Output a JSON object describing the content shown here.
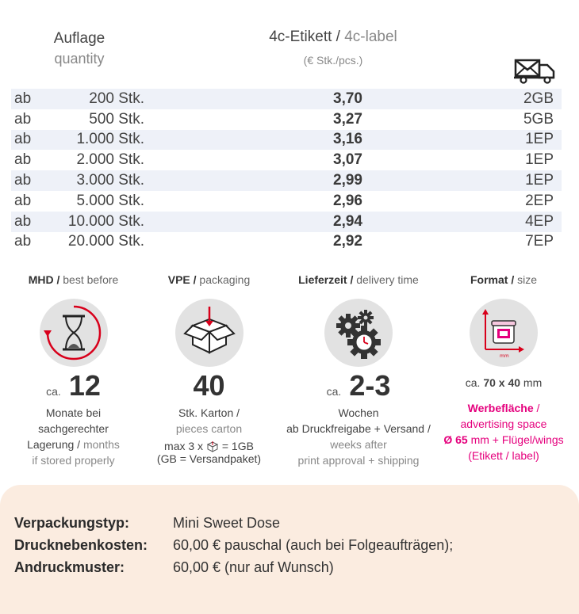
{
  "header": {
    "quantity_de": "Auflage",
    "quantity_en": "quantity",
    "label_de": "4c-Etikett /",
    "label_en": "4c-label",
    "unit": "(€ Stk./pcs.)",
    "shipping_icon": "truck-mail-icon"
  },
  "rows": [
    {
      "prefix": "ab",
      "qty": "200 Stk.",
      "price": "3,70",
      "ship": "2GB"
    },
    {
      "prefix": "ab",
      "qty": "500 Stk.",
      "price": "3,27",
      "ship": "5GB"
    },
    {
      "prefix": "ab",
      "qty": "1.000 Stk.",
      "price": "3,16",
      "ship": "1EP"
    },
    {
      "prefix": "ab",
      "qty": "2.000 Stk.",
      "price": "3,07",
      "ship": "1EP"
    },
    {
      "prefix": "ab",
      "qty": "3.000 Stk.",
      "price": "2,99",
      "ship": "1EP"
    },
    {
      "prefix": "ab",
      "qty": "5.000 Stk.",
      "price": "2,96",
      "ship": "2EP"
    },
    {
      "prefix": "ab",
      "qty": "10.000 Stk.",
      "price": "2,94",
      "ship": "4EP"
    },
    {
      "prefix": "ab",
      "qty": "20.000 Stk.",
      "price": "2,92",
      "ship": "7EP"
    }
  ],
  "info": {
    "mhd": {
      "title_de": "MHD /",
      "title_en": "best before",
      "ca": "ca.",
      "value": "12",
      "line1": "Monate bei",
      "line2": "sachgerechter",
      "line3a": "Lagerung /",
      "line3b": "months",
      "line4": "if stored properly",
      "icon": "hourglass-icon"
    },
    "vpe": {
      "title_de": "VPE /",
      "title_en": "packaging",
      "value": "40",
      "line1": "Stk. Karton /",
      "line2": "pieces carton",
      "line3a": "max 3 x",
      "line3b": "= 1GB",
      "line4": "(GB = Versandpaket)",
      "icon": "box-icon"
    },
    "delivery": {
      "title_de": "Lieferzeit /",
      "title_en": "delivery time",
      "ca": "ca.",
      "value": "2-3",
      "line1": "Wochen",
      "line2": "ab Druckfreigabe + Versand /",
      "line3": "weeks after",
      "line4": "print approval + shipping",
      "icon": "gears-clock-icon"
    },
    "format": {
      "title_de": "Format /",
      "title_en": "size",
      "size_prefix": "ca.",
      "size_value": "70 x 40",
      "size_unit": "mm",
      "line1a": "Werbefläche",
      "line1b": "/",
      "line2": "advertising space",
      "line3a": "Ø 65",
      "line3b": "mm + Flügel/wings",
      "line4": "(Etikett / label)",
      "icon": "jar-dimensions-icon",
      "accent": "#e5007d"
    }
  },
  "details": [
    {
      "key": "Verpackungstyp:",
      "value": "Mini Sweet Dose"
    },
    {
      "key": "Drucknebenkosten:",
      "value": "60,00 € pauschal (auch bei Folgeaufträgen);"
    },
    {
      "key": "Andruckmuster:",
      "value": "60,00 € (nur auf Wunsch)"
    }
  ]
}
